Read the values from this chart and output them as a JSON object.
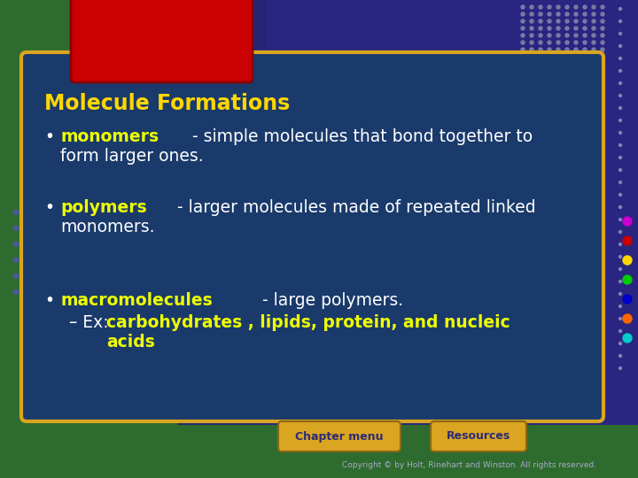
{
  "title": "Molecule Formations",
  "title_color": "#FFD700",
  "bg_green_color": "#2E6B2E",
  "bg_purple_color": "#2B2875",
  "bg_panel_color": "#1A3A6B",
  "panel_border_color": "#DAA520",
  "red_tab_color": "#CC0000",
  "red_tab_border": "#8B0000",
  "white_text_color": "#FFFFFF",
  "yellow_text_color": "#EEFF00",
  "bullet_color": "#FFFFFF",
  "bullet1_bold": "monomers",
  "bullet2_bold": "polymers",
  "bullet3_bold": "macromolecules",
  "btn1_text": "Chapter menu",
  "btn2_text": "Resources",
  "btn_bg_color": "#DAA520",
  "btn_border_color": "#8B6914",
  "btn_text_color": "#2B2B7A",
  "copyright": "Copyright © by Holt, Rinehart and Winston. All rights reserved.",
  "copyright_color": "#AAAACC",
  "dot_colors_right": [
    "#CC00CC",
    "#CC0000",
    "#FFD700",
    "#00CC00",
    "#0000CC",
    "#FF6600",
    "#00CCCC"
  ],
  "dots_grid_color": "#8888AA"
}
